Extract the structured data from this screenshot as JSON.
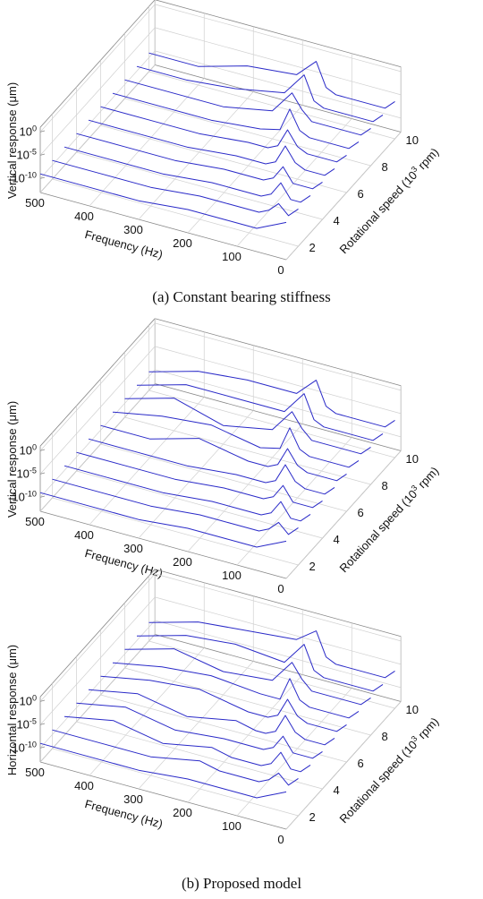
{
  "captions": [
    "(a) Constant bearing stiffness",
    "(b) Proposed model"
  ],
  "chart_data": [
    {
      "type": "waterfall",
      "xlabel": "Frequency (Hz)",
      "ylabel": "Rotational speed (10^3 rpm)",
      "zlabel": "Vertical response (μm)",
      "xlim": [
        0,
        500
      ],
      "xticks": [
        0,
        100,
        200,
        300,
        400,
        500
      ],
      "ylim": [
        1,
        10.5
      ],
      "yticks": [
        2,
        4,
        6,
        8,
        10
      ],
      "zlim": [
        1e-13,
        10
      ],
      "zscale": "log",
      "zticks": [
        {
          "value": 1e-10,
          "label": "10^-10"
        },
        {
          "value": 1e-05,
          "label": "10^-5"
        },
        {
          "value": 1,
          "label": "10^0"
        }
      ],
      "grid": true,
      "color": "#2a2ac8",
      "x": [
        0,
        20,
        40,
        60,
        80,
        100,
        120,
        140,
        160,
        200,
        300,
        400,
        500
      ],
      "series": [
        {
          "speed": 1,
          "values": [
            1e-05,
            1e-06,
            1e-07,
            1e-08,
            1e-08,
            1e-08,
            1e-08,
            1e-08,
            1e-08,
            1e-08,
            1e-09,
            1e-09,
            1e-09
          ]
        },
        {
          "speed": 2,
          "values": [
            1e-05,
            1e-07,
            1e-05,
            1e-07,
            1e-08,
            1e-08,
            1e-08,
            1e-08,
            1e-08,
            1e-08,
            1e-09,
            1e-09,
            1e-09
          ]
        },
        {
          "speed": 3,
          "values": [
            1e-05,
            1e-07,
            1e-07,
            0.0001,
            1e-07,
            1e-08,
            1e-08,
            1e-08,
            1e-08,
            1e-08,
            1e-09,
            1e-09,
            1e-09
          ]
        },
        {
          "speed": 4,
          "values": [
            1e-05,
            1e-07,
            1e-07,
            1e-07,
            0.0001,
            1e-07,
            1e-08,
            1e-08,
            1e-08,
            1e-08,
            1e-09,
            1e-09,
            1e-09
          ]
        },
        {
          "speed": 5,
          "values": [
            1e-05,
            1e-07,
            1e-07,
            1e-07,
            1e-06,
            0.001,
            1e-07,
            1e-08,
            1e-08,
            1e-08,
            1e-09,
            1e-09,
            1e-09
          ]
        },
        {
          "speed": 6,
          "values": [
            1e-05,
            1e-07,
            1e-07,
            1e-07,
            1e-07,
            1e-06,
            0.001,
            1e-07,
            1e-08,
            1e-08,
            1e-09,
            1e-09,
            1e-09
          ]
        },
        {
          "speed": 7,
          "values": [
            1e-05,
            1e-07,
            1e-07,
            1e-07,
            1e-07,
            1e-07,
            1e-06,
            0.01,
            1e-07,
            1e-08,
            1e-09,
            1e-09,
            1e-09
          ]
        },
        {
          "speed": 8,
          "values": [
            1e-05,
            1e-07,
            1e-07,
            1e-07,
            1e-07,
            1e-07,
            1e-07,
            1e-05,
            0.01,
            1e-07,
            1e-09,
            1e-09,
            1e-09
          ]
        },
        {
          "speed": 9,
          "values": [
            1e-05,
            1e-07,
            1e-07,
            1e-07,
            1e-07,
            1e-07,
            1e-07,
            1e-06,
            0.1,
            1e-06,
            1e-08,
            1e-09,
            1e-09
          ]
        },
        {
          "speed": 10,
          "values": [
            1e-05,
            1e-07,
            1e-07,
            1e-07,
            1e-07,
            1e-07,
            1e-07,
            1e-06,
            0.1,
            1e-05,
            1e-06,
            1e-09,
            1e-09
          ]
        }
      ]
    },
    {
      "type": "waterfall",
      "xlabel": "Frequency (Hz)",
      "ylabel": "Rotational speed (10^3 rpm)",
      "zlabel": "Vertical response (μm)",
      "xlim": [
        0,
        500
      ],
      "xticks": [
        0,
        100,
        200,
        300,
        400,
        500
      ],
      "ylim": [
        1,
        10.5
      ],
      "yticks": [
        2,
        4,
        6,
        8,
        10
      ],
      "zlim": [
        1e-13,
        10
      ],
      "zscale": "log",
      "zticks": [
        {
          "value": 1e-10,
          "label": "10^-10"
        },
        {
          "value": 1e-05,
          "label": "10^-5"
        },
        {
          "value": 1,
          "label": "10^0"
        }
      ],
      "grid": true,
      "color": "#2a2ac8",
      "x": [
        0,
        20,
        40,
        60,
        80,
        100,
        120,
        140,
        160,
        200,
        300,
        400,
        500
      ],
      "series": [
        {
          "speed": 1,
          "values": [
            1e-05,
            1e-06,
            1e-07,
            1e-08,
            1e-08,
            1e-08,
            1e-08,
            1e-08,
            1e-08,
            1e-08,
            1e-09,
            1e-09,
            1e-09
          ]
        },
        {
          "speed": 2,
          "values": [
            1e-05,
            1e-07,
            1e-05,
            1e-07,
            1e-08,
            1e-08,
            1e-08,
            1e-08,
            1e-08,
            1e-08,
            1e-09,
            1e-09,
            1e-09
          ]
        },
        {
          "speed": 3,
          "values": [
            1e-05,
            1e-07,
            1e-07,
            0.0001,
            1e-07,
            1e-08,
            1e-08,
            1e-08,
            1e-08,
            1e-08,
            1e-09,
            1e-09,
            1e-09
          ]
        },
        {
          "speed": 4,
          "values": [
            1e-05,
            1e-07,
            1e-07,
            1e-07,
            0.0001,
            1e-07,
            1e-08,
            1e-08,
            1e-08,
            1e-08,
            1e-09,
            1e-09,
            1e-09
          ]
        },
        {
          "speed": 5,
          "values": [
            1e-05,
            1e-07,
            1e-07,
            1e-07,
            1e-06,
            0.001,
            1e-07,
            1e-08,
            1e-08,
            1e-08,
            1e-09,
            1e-09,
            1e-09
          ]
        },
        {
          "speed": 6,
          "values": [
            1e-05,
            1e-07,
            1e-07,
            1e-07,
            1e-07,
            1e-06,
            0.001,
            1e-07,
            1e-08,
            1e-08,
            1e-06,
            1e-09,
            1e-09
          ]
        },
        {
          "speed": 7,
          "values": [
            1e-05,
            1e-07,
            1e-07,
            1e-07,
            1e-07,
            1e-07,
            1e-06,
            0.01,
            1e-07,
            1e-08,
            1e-06,
            1e-07,
            1e-09
          ]
        },
        {
          "speed": 8,
          "values": [
            1e-05,
            1e-07,
            1e-07,
            1e-07,
            1e-07,
            1e-07,
            1e-07,
            1e-05,
            0.01,
            1e-07,
            1e-09,
            1e-06,
            1e-09
          ]
        },
        {
          "speed": 9,
          "values": [
            1e-05,
            1e-07,
            1e-07,
            1e-07,
            1e-07,
            1e-07,
            1e-07,
            1e-06,
            0.1,
            1e-06,
            1e-06,
            1e-06,
            1e-09
          ]
        },
        {
          "speed": 10,
          "values": [
            1e-05,
            1e-07,
            1e-07,
            1e-07,
            1e-07,
            1e-07,
            1e-07,
            1e-06,
            0.1,
            1e-05,
            1e-05,
            1e-06,
            1e-09
          ]
        }
      ]
    },
    {
      "type": "waterfall",
      "xlabel": "Frequency (Hz)",
      "ylabel": "Rotational speed (10^3 rpm)",
      "zlabel": "Horizontal response (μm)",
      "xlim": [
        0,
        500
      ],
      "xticks": [
        0,
        100,
        200,
        300,
        400,
        500
      ],
      "ylim": [
        1,
        10.5
      ],
      "yticks": [
        2,
        4,
        6,
        8,
        10
      ],
      "zlim": [
        1e-13,
        10
      ],
      "zscale": "log",
      "zticks": [
        {
          "value": 1e-10,
          "label": "10^-10"
        },
        {
          "value": 1e-05,
          "label": "10^-5"
        },
        {
          "value": 1,
          "label": "10^0"
        }
      ],
      "grid": true,
      "color": "#2a2ac8",
      "x": [
        0,
        20,
        40,
        60,
        80,
        100,
        120,
        140,
        160,
        200,
        300,
        400,
        500
      ],
      "series": [
        {
          "speed": 1,
          "values": [
            1e-05,
            1e-06,
            1e-07,
            1e-08,
            1e-08,
            1e-08,
            1e-08,
            1e-08,
            1e-08,
            1e-08,
            1e-09,
            1e-09,
            1e-09
          ]
        },
        {
          "speed": 2,
          "values": [
            1e-05,
            1e-07,
            1e-05,
            1e-07,
            1e-08,
            1e-08,
            1e-08,
            1e-08,
            1e-08,
            1e-07,
            1e-09,
            1e-09,
            1e-09
          ]
        },
        {
          "speed": 3,
          "values": [
            1e-05,
            1e-07,
            1e-07,
            0.0001,
            1e-07,
            1e-08,
            1e-08,
            1e-08,
            1e-08,
            1e-07,
            1e-09,
            1e-07,
            1e-09
          ]
        },
        {
          "speed": 4,
          "values": [
            1e-05,
            1e-07,
            1e-07,
            1e-07,
            0.0001,
            1e-07,
            1e-08,
            1e-08,
            1e-08,
            1e-08,
            1e-09,
            1e-07,
            1e-09
          ]
        },
        {
          "speed": 5,
          "values": [
            1e-05,
            1e-07,
            1e-07,
            1e-07,
            1e-06,
            0.001,
            1e-07,
            1e-08,
            1e-08,
            1e-07,
            1e-09,
            1e-07,
            1e-09
          ]
        },
        {
          "speed": 6,
          "values": [
            1e-05,
            1e-07,
            1e-07,
            1e-07,
            1e-07,
            1e-06,
            0.001,
            1e-07,
            1e-08,
            1e-08,
            1e-06,
            1e-07,
            1e-09
          ]
        },
        {
          "speed": 7,
          "values": [
            1e-05,
            1e-07,
            1e-07,
            1e-07,
            1e-07,
            1e-07,
            1e-06,
            0.01,
            1e-07,
            1e-07,
            1e-06,
            1e-07,
            1e-09
          ]
        },
        {
          "speed": 8,
          "values": [
            1e-05,
            1e-07,
            1e-07,
            1e-07,
            1e-07,
            1e-07,
            1e-07,
            1e-05,
            0.01,
            1e-07,
            1e-08,
            1e-06,
            1e-09
          ]
        },
        {
          "speed": 9,
          "values": [
            1e-05,
            1e-07,
            1e-07,
            1e-07,
            1e-07,
            1e-07,
            1e-07,
            1e-06,
            0.1,
            1e-06,
            1e-05,
            1e-06,
            1e-09
          ]
        },
        {
          "speed": 10,
          "values": [
            1e-05,
            1e-07,
            1e-07,
            1e-07,
            1e-07,
            1e-07,
            1e-07,
            1e-06,
            0.1,
            0.0001,
            1e-05,
            1e-06,
            1e-09
          ]
        }
      ]
    }
  ]
}
